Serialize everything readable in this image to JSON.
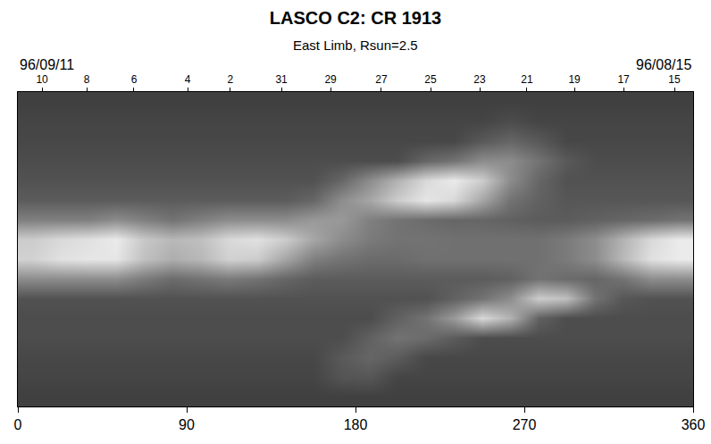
{
  "chart_data": {
    "type": "heatmap",
    "title": "LASCO C2: CR 1913",
    "subtitle": "East Limb, Rsun=2.5",
    "color": "gray",
    "xlim": [
      0,
      360
    ],
    "xticks": [
      0,
      90,
      180,
      270,
      360
    ],
    "ylim": [
      0,
      16
    ],
    "tick_labels": "x",
    "zlim": [
      0,
      100
    ],
    "top_axis": {
      "left_label": "96/09/11",
      "right_label": "96/08/15",
      "ticks": [
        {
          "value": 12.9,
          "label": "10"
        },
        {
          "value": 36.7,
          "label": "8"
        },
        {
          "value": 61.9,
          "label": "6"
        },
        {
          "value": 90.5,
          "label": "4"
        },
        {
          "value": 113.3,
          "label": "2"
        },
        {
          "value": 140.5,
          "label": "31"
        },
        {
          "value": 166.7,
          "label": "29"
        },
        {
          "value": 193.8,
          "label": "27"
        },
        {
          "value": 220,
          "label": "25"
        },
        {
          "value": 246.2,
          "label": "23"
        },
        {
          "value": 271.4,
          "label": "21"
        },
        {
          "value": 296.7,
          "label": "19"
        },
        {
          "value": 322.9,
          "label": "17"
        },
        {
          "value": 350,
          "label": "15"
        }
      ]
    },
    "x": [
      7.5,
      22.5,
      37.5,
      52.5,
      67.5,
      82.5,
      97.5,
      112.5,
      127.5,
      142.5,
      157.5,
      172.5,
      187.5,
      202.5,
      217.5,
      232.5,
      247.5,
      262.5,
      277.5,
      292.5,
      307.5,
      322.5,
      337.5,
      352.5
    ],
    "y": [
      15.5,
      14.5,
      13.5,
      12.5,
      11.5,
      10.5,
      9.5,
      8.5,
      7.5,
      6.5,
      5.5,
      4.5,
      3.5,
      2.5,
      1.5,
      0.5
    ],
    "z": [
      [
        25,
        25,
        25,
        25,
        25,
        25,
        25,
        25,
        25,
        25,
        25,
        25,
        25,
        25,
        25,
        25,
        25,
        25,
        25,
        25,
        25,
        25,
        25,
        25
      ],
      [
        27,
        27,
        27,
        27,
        27,
        27,
        27,
        27,
        27,
        27,
        27,
        27,
        27,
        27,
        27,
        27,
        27,
        30,
        27,
        27,
        27,
        27,
        27,
        27
      ],
      [
        28,
        28,
        28,
        28,
        28,
        28,
        28,
        28,
        28,
        28,
        28,
        28,
        28,
        28,
        28,
        28,
        35,
        40,
        35,
        28,
        28,
        28,
        28,
        28
      ],
      [
        30,
        30,
        30,
        30,
        30,
        30,
        30,
        30,
        30,
        30,
        30,
        30,
        30,
        30,
        40,
        45,
        55,
        55,
        45,
        35,
        30,
        30,
        30,
        30
      ],
      [
        32,
        32,
        32,
        32,
        32,
        32,
        32,
        32,
        32,
        32,
        32,
        40,
        55,
        70,
        85,
        92,
        80,
        55,
        40,
        32,
        32,
        32,
        32,
        32
      ],
      [
        36,
        36,
        36,
        36,
        36,
        36,
        36,
        36,
        36,
        36,
        40,
        55,
        65,
        80,
        90,
        85,
        65,
        45,
        38,
        34,
        34,
        34,
        34,
        34
      ],
      [
        50,
        50,
        50,
        55,
        50,
        45,
        50,
        55,
        55,
        55,
        60,
        60,
        50,
        45,
        42,
        40,
        40,
        38,
        36,
        36,
        38,
        40,
        42,
        45
      ],
      [
        80,
        85,
        88,
        92,
        78,
        72,
        75,
        85,
        88,
        80,
        65,
        55,
        48,
        45,
        45,
        44,
        44,
        44,
        44,
        48,
        55,
        70,
        85,
        92
      ],
      [
        82,
        88,
        90,
        90,
        75,
        68,
        72,
        82,
        80,
        65,
        50,
        45,
        42,
        42,
        44,
        44,
        44,
        44,
        44,
        48,
        55,
        72,
        88,
        92
      ],
      [
        55,
        55,
        55,
        55,
        48,
        42,
        45,
        48,
        45,
        40,
        36,
        36,
        36,
        36,
        36,
        36,
        36,
        38,
        45,
        42,
        40,
        45,
        55,
        55
      ],
      [
        32,
        32,
        32,
        32,
        32,
        32,
        32,
        32,
        32,
        32,
        32,
        32,
        32,
        32,
        32,
        38,
        45,
        55,
        80,
        75,
        45,
        34,
        32,
        32
      ],
      [
        30,
        30,
        30,
        30,
        30,
        30,
        30,
        30,
        30,
        30,
        30,
        30,
        30,
        38,
        45,
        60,
        85,
        70,
        38,
        30,
        30,
        30,
        30,
        30
      ],
      [
        30,
        30,
        30,
        30,
        30,
        30,
        30,
        30,
        30,
        30,
        30,
        30,
        38,
        45,
        42,
        36,
        30,
        30,
        30,
        30,
        30,
        30,
        30,
        30
      ],
      [
        28,
        28,
        28,
        28,
        28,
        28,
        28,
        28,
        28,
        28,
        28,
        35,
        40,
        36,
        28,
        28,
        28,
        28,
        28,
        28,
        28,
        28,
        28,
        28
      ],
      [
        27,
        27,
        27,
        27,
        27,
        27,
        27,
        27,
        27,
        27,
        27,
        33,
        34,
        27,
        27,
        27,
        27,
        27,
        27,
        27,
        27,
        27,
        27,
        27
      ],
      [
        25,
        25,
        25,
        25,
        25,
        25,
        25,
        25,
        25,
        25,
        25,
        25,
        25,
        25,
        25,
        25,
        25,
        25,
        25,
        25,
        25,
        25,
        25,
        25
      ]
    ]
  }
}
